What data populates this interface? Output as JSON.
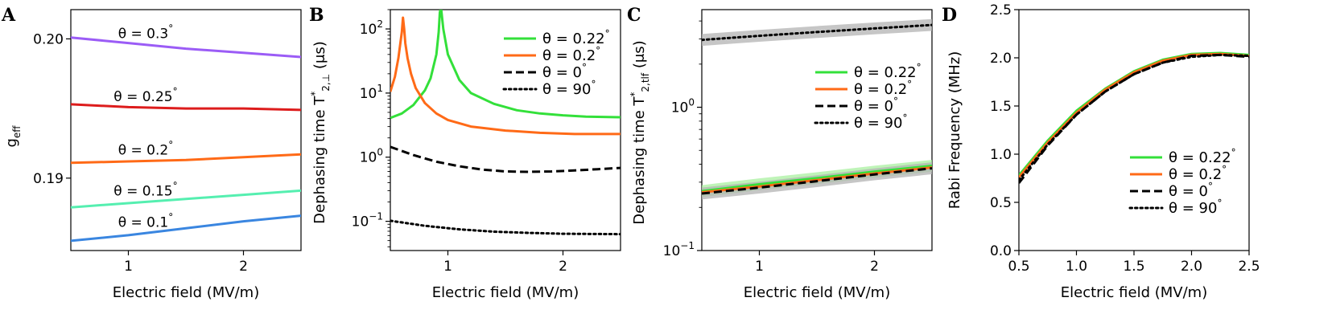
{
  "colors": {
    "green": "#33e03a",
    "orange": "#ff6a17",
    "black": "#000000",
    "purple": "#9b5cf6",
    "red": "#dd1c1c",
    "mint": "#55efb0",
    "blue": "#3a86e0",
    "band_gray": "#b3b3b3",
    "band_green": "#a9f0a0"
  },
  "chart_data": [
    {
      "panel": "A",
      "type": "line",
      "xlabel": "Electric field (MV/m)",
      "ylabel": "g",
      "ylabel_sub": "eff",
      "xlim": [
        0.5,
        2.5
      ],
      "ylim": [
        0.1848,
        0.2021
      ],
      "xticks": [
        1,
        2
      ],
      "yticks": [
        0.19,
        0.2
      ],
      "ytick_labels": [
        "0.19",
        "0.20"
      ],
      "series": [
        {
          "name": "θ = 0.3°",
          "prefix": "θ = 0.3",
          "sup": "°",
          "color": "purple",
          "x": [
            0.5,
            1.0,
            1.5,
            2.0,
            2.5
          ],
          "y": [
            0.2001,
            0.1997,
            0.1993,
            0.199,
            0.1987
          ]
        },
        {
          "name": "θ = 0.25°",
          "prefix": "θ = 0.25",
          "sup": "°",
          "color": "red",
          "x": [
            0.5,
            1.0,
            1.5,
            2.0,
            2.5
          ],
          "y": [
            0.1953,
            0.1951,
            0.195,
            0.195,
            0.1949
          ]
        },
        {
          "name": "θ = 0.2°",
          "prefix": "θ = 0.2",
          "sup": "°",
          "color": "orange",
          "x": [
            0.5,
            1.0,
            1.5,
            2.0,
            2.5
          ],
          "y": [
            0.1911,
            0.1912,
            0.1913,
            0.1915,
            0.1917
          ]
        },
        {
          "name": "θ = 0.15°",
          "prefix": "θ = 0.15",
          "sup": "°",
          "color": "mint",
          "x": [
            0.5,
            1.0,
            1.5,
            2.0,
            2.5
          ],
          "y": [
            0.1879,
            0.1882,
            0.1885,
            0.1888,
            0.1891
          ]
        },
        {
          "name": "θ = 0.1°",
          "prefix": "θ = 0.1",
          "sup": "°",
          "color": "blue",
          "x": [
            0.5,
            1.0,
            1.5,
            2.0,
            2.5
          ],
          "y": [
            0.1855,
            0.1859,
            0.1864,
            0.1869,
            0.1873
          ]
        }
      ]
    },
    {
      "panel": "B",
      "type": "line",
      "yscale": "log",
      "xlabel": "Electric field (MV/m)",
      "ylabel": "Dephasing time T",
      "ylabel_sup": "*",
      "ylabel_sub": "2,⊥",
      "ylabel_unit": " (μs)",
      "xlim": [
        0.5,
        2.5
      ],
      "ylim": [
        0.035,
        200
      ],
      "xticks": [
        1,
        2
      ],
      "yticks": [
        0.1,
        1,
        10,
        100
      ],
      "ytick_labels": [
        {
          "base": "10",
          "exp": "−1"
        },
        {
          "base": "10",
          "exp": "0"
        },
        {
          "base": "10",
          "exp": "1"
        },
        {
          "base": "10",
          "exp": "2"
        }
      ],
      "series": [
        {
          "name": "θ = 0.22°",
          "color": "green",
          "style": "solid",
          "x": [
            0.5,
            0.6,
            0.7,
            0.8,
            0.85,
            0.9,
            0.92,
            0.93,
            0.94,
            0.96,
            1.0,
            1.1,
            1.2,
            1.4,
            1.6,
            1.8,
            2.0,
            2.2,
            2.5
          ],
          "y": [
            4.1,
            4.8,
            6.5,
            11,
            17,
            40,
            90,
            180,
            220,
            100,
            40,
            16,
            10,
            6.8,
            5.4,
            4.8,
            4.5,
            4.3,
            4.2
          ]
        },
        {
          "name": "θ = 0.2°",
          "color": "orange",
          "style": "solid",
          "x": [
            0.5,
            0.54,
            0.57,
            0.6,
            0.61,
            0.62,
            0.63,
            0.65,
            0.68,
            0.72,
            0.8,
            0.9,
            1.0,
            1.2,
            1.5,
            1.8,
            2.1,
            2.5
          ],
          "y": [
            10.5,
            18,
            35,
            90,
            150,
            100,
            60,
            35,
            20,
            12,
            7,
            4.8,
            3.8,
            3.0,
            2.6,
            2.4,
            2.3,
            2.3
          ]
        },
        {
          "name": "θ = 0°",
          "color": "black",
          "style": "dashed",
          "x": [
            0.5,
            0.7,
            0.9,
            1.1,
            1.3,
            1.5,
            1.7,
            1.9,
            2.1,
            2.3,
            2.5
          ],
          "y": [
            1.45,
            1.08,
            0.85,
            0.72,
            0.64,
            0.6,
            0.59,
            0.6,
            0.62,
            0.65,
            0.68
          ]
        },
        {
          "name": "θ = 90°",
          "color": "black",
          "style": "dotted",
          "x": [
            0.5,
            0.8,
            1.1,
            1.4,
            1.7,
            2.0,
            2.5
          ],
          "y": [
            0.102,
            0.085,
            0.075,
            0.069,
            0.066,
            0.064,
            0.063
          ]
        }
      ],
      "legend": {
        "placement": "top-right",
        "entries": [
          {
            "prefix": "θ = 0.22",
            "sup": "°",
            "color": "green",
            "style": "solid"
          },
          {
            "prefix": "θ = 0.2",
            "sup": "°",
            "color": "orange",
            "style": "solid"
          },
          {
            "prefix": "θ = 0",
            "sup": "°",
            "color": "black",
            "style": "dashed"
          },
          {
            "prefix": "θ = 90",
            "sup": "°",
            "color": "black",
            "style": "dotted"
          }
        ]
      }
    },
    {
      "panel": "C",
      "type": "line",
      "yscale": "log",
      "xlabel": "Electric field (MV/m)",
      "ylabel": "Dephasing time T",
      "ylabel_sup": "*",
      "ylabel_sub": "2,tlf",
      "ylabel_unit": " (μs)",
      "xlim": [
        0.5,
        2.5
      ],
      "ylim": [
        0.1,
        4.8
      ],
      "xticks": [
        1,
        2
      ],
      "yticks": [
        0.1,
        1
      ],
      "ytick_labels": [
        {
          "base": "10",
          "exp": "−1"
        },
        {
          "base": "10",
          "exp": "0"
        }
      ],
      "series": [
        {
          "name": "θ = 0.22°",
          "color": "green",
          "style": "solid",
          "x": [
            0.5,
            1.0,
            1.5,
            2.0,
            2.5
          ],
          "y": [
            0.26,
            0.29,
            0.32,
            0.355,
            0.39
          ]
        },
        {
          "name": "θ = 0.2°",
          "color": "orange",
          "style": "solid",
          "x": [
            0.5,
            1.0,
            1.5,
            2.0,
            2.5
          ],
          "y": [
            0.255,
            0.28,
            0.31,
            0.345,
            0.38
          ]
        },
        {
          "name": "θ = 0°",
          "color": "black",
          "style": "dashed",
          "x": [
            0.5,
            1.0,
            1.5,
            2.0,
            2.5
          ],
          "y": [
            0.25,
            0.275,
            0.305,
            0.34,
            0.375
          ]
        },
        {
          "name": "θ = 90°",
          "color": "black",
          "style": "dotted",
          "x": [
            0.5,
            1.0,
            1.5,
            2.0,
            2.5
          ],
          "y": [
            2.95,
            3.15,
            3.35,
            3.55,
            3.75
          ]
        }
      ],
      "legend": {
        "placement": "center-right",
        "entries": [
          {
            "prefix": "θ = 0.22",
            "sup": "°",
            "color": "green",
            "style": "solid"
          },
          {
            "prefix": "θ = 0.2",
            "sup": "°",
            "color": "orange",
            "style": "solid"
          },
          {
            "prefix": "θ = 0",
            "sup": "°",
            "color": "black",
            "style": "dashed"
          },
          {
            "prefix": "θ = 90",
            "sup": "°",
            "color": "black",
            "style": "dotted"
          }
        ]
      }
    },
    {
      "panel": "D",
      "type": "line",
      "xlabel": "Electric field (MV/m)",
      "ylabel": "Rabi Frequency (MHz)",
      "xlim": [
        0.5,
        2.5
      ],
      "ylim": [
        0.0,
        2.5
      ],
      "xticks": [
        0.5,
        1.0,
        1.5,
        2.0,
        2.5
      ],
      "xtick_labels": [
        "0.5",
        "1.0",
        "1.5",
        "2.0",
        "2.5"
      ],
      "yticks": [
        0.0,
        0.5,
        1.0,
        1.5,
        2.0,
        2.5
      ],
      "ytick_labels": [
        "0.0",
        "0.5",
        "1.0",
        "1.5",
        "2.0",
        "2.5"
      ],
      "series": [
        {
          "name": "θ = 0.22°",
          "color": "green",
          "style": "solid",
          "x": [
            0.5,
            0.75,
            1.0,
            1.25,
            1.5,
            1.75,
            2.0,
            2.25,
            2.5
          ],
          "y": [
            0.78,
            1.14,
            1.45,
            1.68,
            1.86,
            1.98,
            2.04,
            2.05,
            2.03
          ]
        },
        {
          "name": "θ = 0.2°",
          "color": "orange",
          "style": "solid",
          "x": [
            0.5,
            0.75,
            1.0,
            1.25,
            1.5,
            1.75,
            2.0,
            2.25,
            2.5
          ],
          "y": [
            0.76,
            1.12,
            1.43,
            1.67,
            1.85,
            1.97,
            2.03,
            2.04,
            2.02
          ]
        },
        {
          "name": "θ = 0°",
          "color": "black",
          "style": "dashed",
          "x": [
            0.5,
            0.75,
            1.0,
            1.25,
            1.5,
            1.75,
            2.0,
            2.25,
            2.5
          ],
          "y": [
            0.7,
            1.09,
            1.41,
            1.65,
            1.83,
            1.95,
            2.02,
            2.03,
            2.01
          ]
        },
        {
          "name": "θ = 90°",
          "color": "black",
          "style": "dotted",
          "x": [
            0.5,
            0.75,
            1.0,
            1.25,
            1.5,
            1.75,
            2.0,
            2.25,
            2.5
          ],
          "y": [
            0.73,
            1.1,
            1.41,
            1.65,
            1.83,
            1.95,
            2.01,
            2.03,
            2.02
          ]
        }
      ],
      "legend": {
        "placement": "lower-right",
        "entries": [
          {
            "prefix": "θ = 0.22",
            "sup": "°",
            "color": "green",
            "style": "solid"
          },
          {
            "prefix": "θ = 0.2",
            "sup": "°",
            "color": "orange",
            "style": "solid"
          },
          {
            "prefix": "θ = 0",
            "sup": "°",
            "color": "black",
            "style": "dashed"
          },
          {
            "prefix": "θ = 90",
            "sup": "°",
            "color": "black",
            "style": "dotted"
          }
        ]
      }
    }
  ]
}
